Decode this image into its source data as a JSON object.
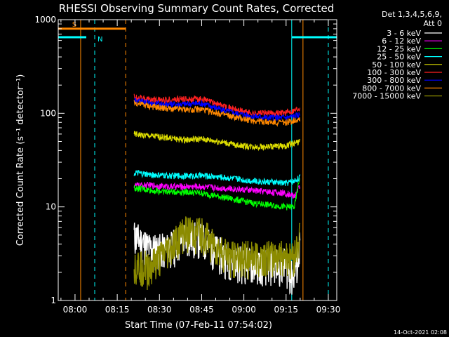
{
  "chart_data": {
    "type": "line",
    "title": "RHESSI Observing Summary Count Rates, Corrected",
    "ylabel": "Corrected Count Rate (s⁻¹ detector⁻¹)",
    "xlabel": "Start Time (07-Feb-11 07:54:02)",
    "y_scale": "log",
    "ylim": [
      1,
      1000
    ],
    "xlim": [
      "07:54:02",
      "09:33:00"
    ],
    "x_ticks": [
      "08:00",
      "08:15",
      "08:30",
      "08:45",
      "09:00",
      "09:15",
      "09:30"
    ],
    "y_ticks": [
      "1",
      "10",
      "100",
      "1000"
    ],
    "grid": false,
    "legend_header": [
      "Det 1,3,4,5,6,9,",
      "Att 0"
    ],
    "legend_position": "right",
    "timestamp": "14-Oct-2021 02:08",
    "series": [
      {
        "name": "3 - 6 keV",
        "color": "#ffffff",
        "x": [
          "08:21",
          "08:27",
          "08:33",
          "08:39",
          "08:45",
          "08:51",
          "08:57",
          "09:03",
          "09:09",
          "09:15",
          "09:17",
          "09:19",
          "09:20"
        ],
        "values": [
          5,
          3.6,
          3.6,
          4.8,
          4.8,
          3.3,
          2.8,
          2.5,
          2.5,
          2.5,
          1.8,
          2.5,
          4.5
        ]
      },
      {
        "name": "6 - 12 keV",
        "color": "#ff00ff",
        "x": [
          "08:21",
          "08:27",
          "08:33",
          "08:39",
          "08:45",
          "08:51",
          "08:57",
          "09:03",
          "09:09",
          "09:15",
          "09:18",
          "09:20"
        ],
        "values": [
          17,
          17,
          16.5,
          16.5,
          16.5,
          16,
          15.5,
          15,
          14.5,
          14,
          13,
          17
        ]
      },
      {
        "name": "12 - 25 keV",
        "color": "#00ff00",
        "x": [
          "08:21",
          "08:27",
          "08:33",
          "08:39",
          "08:45",
          "08:51",
          "08:57",
          "09:03",
          "09:09",
          "09:15",
          "09:18",
          "09:20"
        ],
        "values": [
          16,
          15,
          14.5,
          14.5,
          14,
          13,
          12,
          11,
          10.5,
          10,
          10,
          22
        ]
      },
      {
        "name": "25 - 50 keV",
        "color": "#00ffff",
        "x": [
          "08:21",
          "08:27",
          "08:33",
          "08:39",
          "08:45",
          "08:51",
          "08:57",
          "09:03",
          "09:09",
          "09:15",
          "09:18",
          "09:20"
        ],
        "values": [
          23,
          22,
          21.5,
          21.5,
          21.5,
          21,
          20,
          19,
          18.5,
          18,
          19,
          21
        ]
      },
      {
        "name": "50 - 100 keV",
        "color": "#dddd00",
        "x": [
          "08:21",
          "08:27",
          "08:33",
          "08:39",
          "08:45",
          "08:51",
          "08:57",
          "09:03",
          "09:09",
          "09:15",
          "09:18",
          "09:20"
        ],
        "values": [
          60,
          57,
          55,
          52,
          53,
          50,
          46,
          44,
          44,
          45,
          48,
          50
        ]
      },
      {
        "name": "100 - 300 keV",
        "color": "#ff2020",
        "x": [
          "08:21",
          "08:27",
          "08:33",
          "08:39",
          "08:45",
          "08:51",
          "08:57",
          "09:03",
          "09:09",
          "09:15",
          "09:18",
          "09:20"
        ],
        "values": [
          150,
          140,
          140,
          142,
          142,
          125,
          110,
          100,
          100,
          102,
          108,
          115
        ]
      },
      {
        "name": "300 - 800 keV",
        "color": "#0000ff",
        "x": [
          "08:21",
          "08:27",
          "08:33",
          "08:39",
          "08:45",
          "08:51",
          "08:57",
          "09:03",
          "09:09",
          "09:15",
          "09:18",
          "09:20"
        ],
        "values": [
          140,
          127,
          125,
          125,
          128,
          112,
          100,
          93,
          90,
          90,
          93,
          98
        ]
      },
      {
        "name": "800 - 7000 keV",
        "color": "#ff8800",
        "x": [
          "08:21",
          "08:27",
          "08:33",
          "08:39",
          "08:45",
          "08:51",
          "08:57",
          "09:03",
          "09:09",
          "09:15",
          "09:18",
          "09:20"
        ],
        "values": [
          130,
          118,
          112,
          110,
          110,
          100,
          90,
          84,
          80,
          80,
          84,
          88
        ]
      },
      {
        "name": "7000 - 15000 keV",
        "color": "#8b8b00",
        "x": [
          "08:21",
          "08:27",
          "08:33",
          "08:39",
          "08:45",
          "08:51",
          "08:57",
          "09:03",
          "09:09",
          "09:15",
          "09:18",
          "09:20"
        ],
        "values": [
          2.5,
          2.3,
          3.5,
          5.5,
          5.5,
          3.5,
          3.0,
          3.0,
          3.0,
          3.0,
          3.0,
          5.0
        ]
      }
    ],
    "annotations": [
      {
        "label": "S",
        "color": "#ff8800",
        "value": 800,
        "x_start": "07:54:02",
        "x_end": "08:18"
      },
      {
        "label": "N",
        "color": "#00ffff",
        "value": 650,
        "x_start": "07:54:02",
        "x_end": "08:04"
      },
      {
        "label": "",
        "color": "#00ffff",
        "value": 650,
        "x_start": "09:17",
        "x_end": "09:33"
      }
    ],
    "markers": [
      {
        "x": "08:02",
        "color": "#ff8800",
        "style": "solid"
      },
      {
        "x": "08:07",
        "color": "#00ffff",
        "style": "dashed"
      },
      {
        "x": "08:18",
        "color": "#ff8800",
        "style": "dashed"
      },
      {
        "x": "09:17",
        "color": "#00ffff",
        "style": "solid"
      },
      {
        "x": "09:21",
        "color": "#ff8800",
        "style": "solid"
      },
      {
        "x": "09:30",
        "color": "#00ffff",
        "style": "dashed"
      }
    ]
  }
}
